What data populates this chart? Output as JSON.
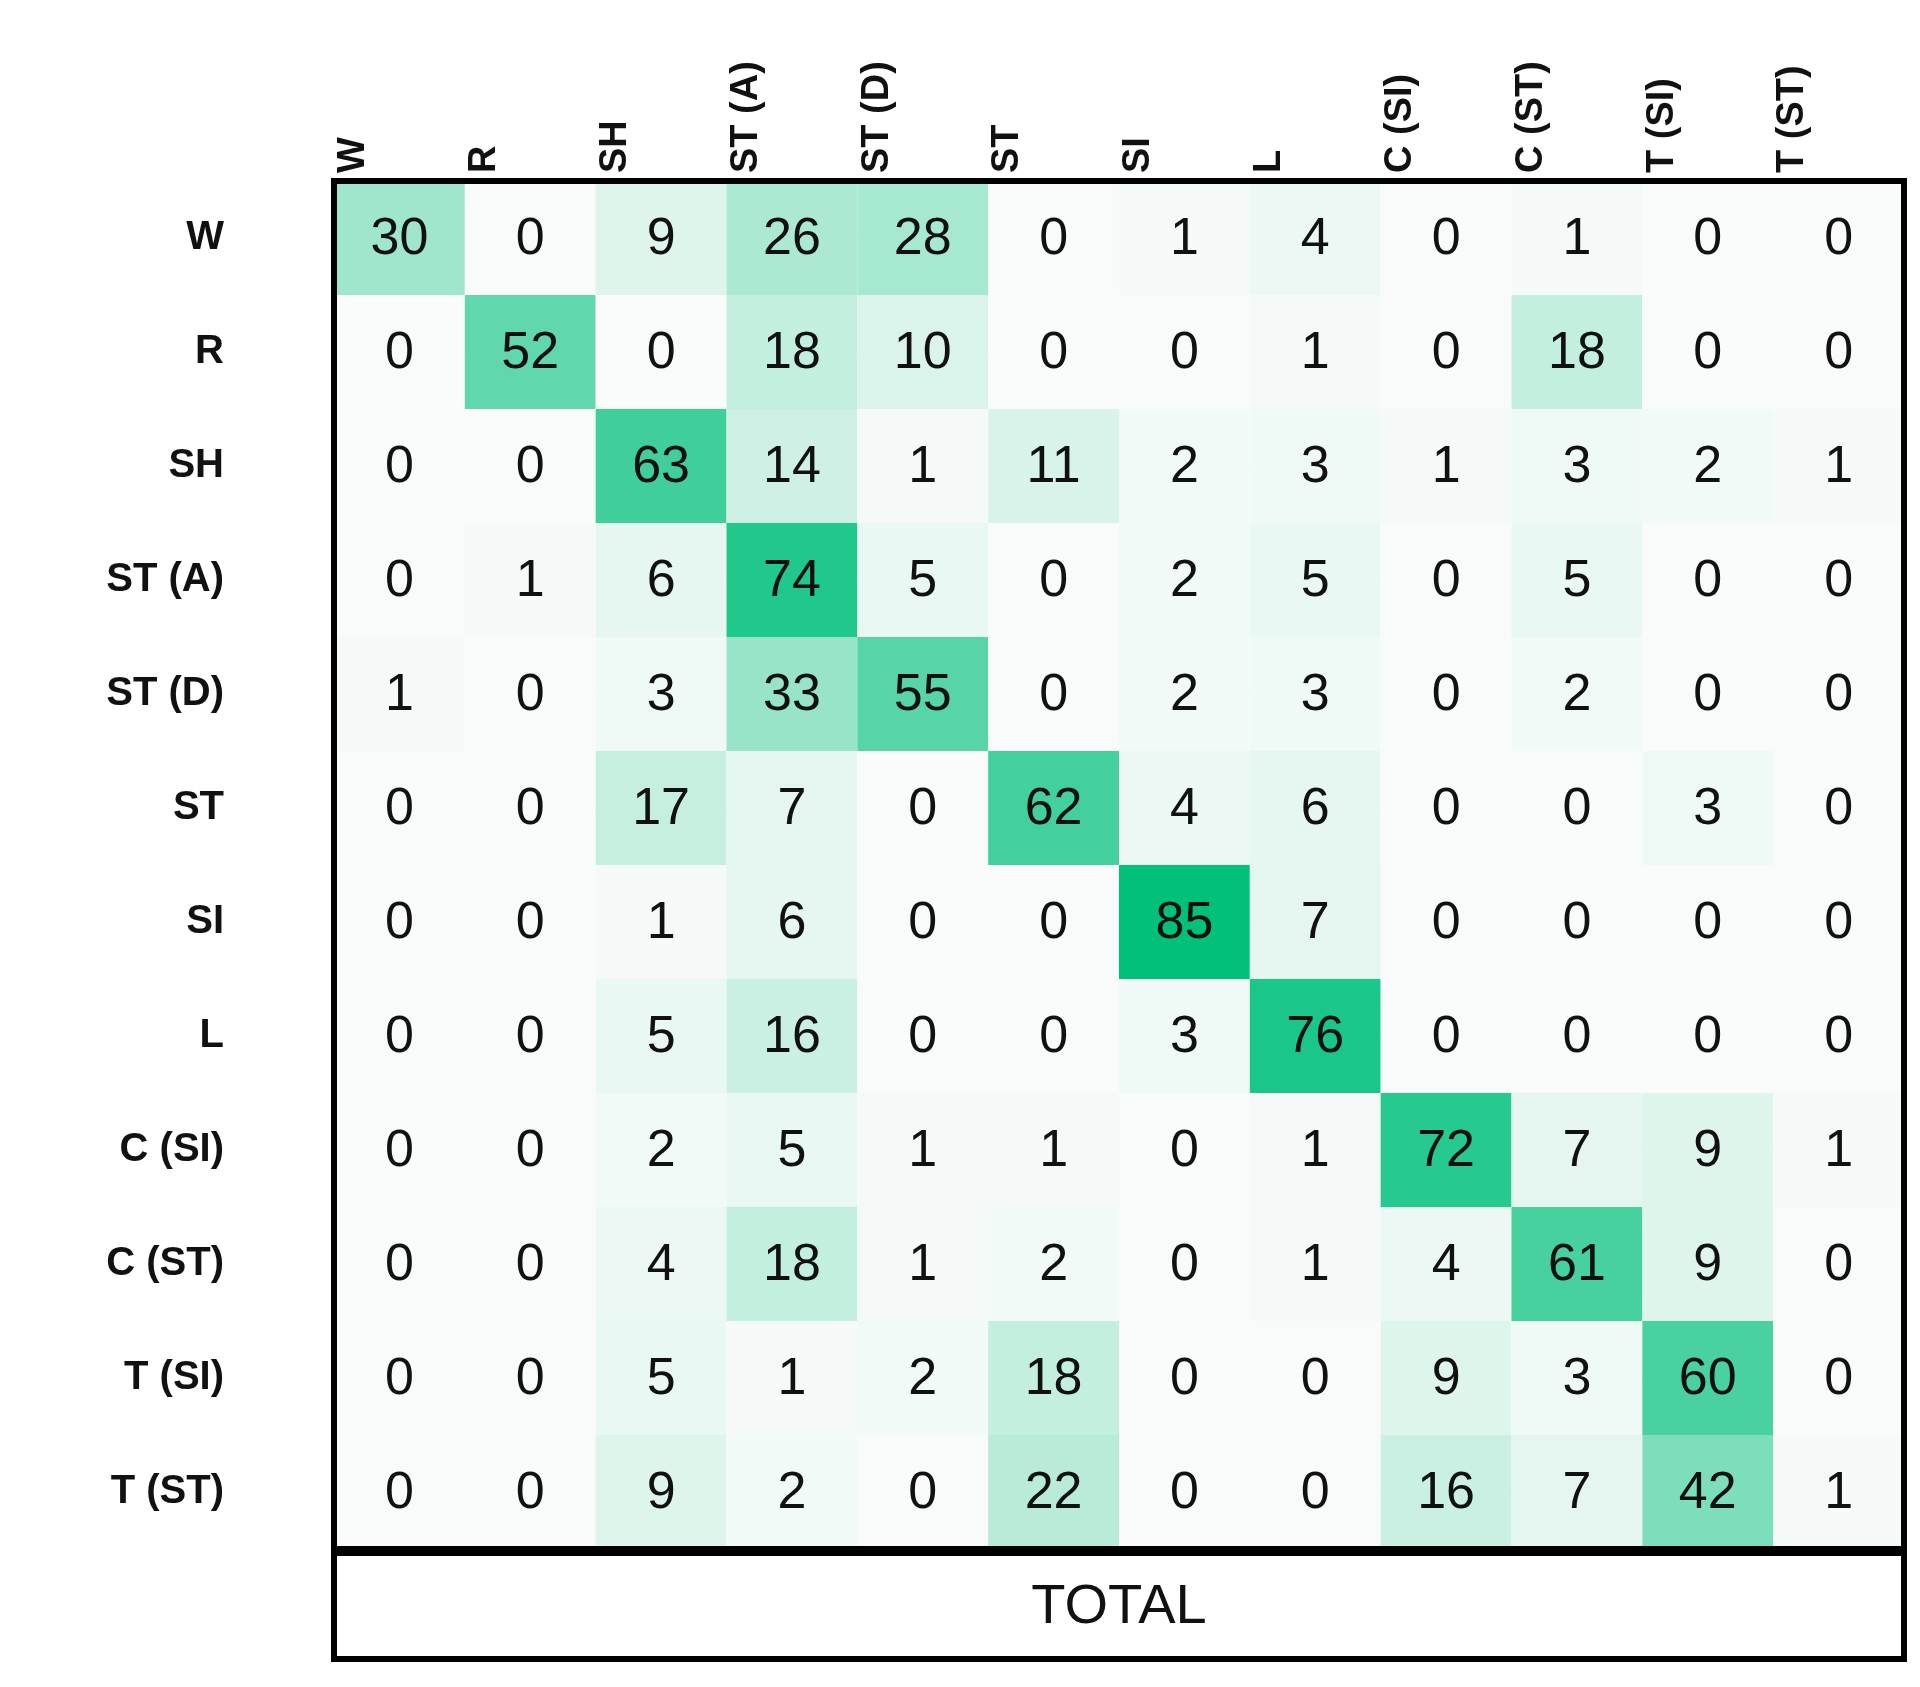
{
  "chart_data": {
    "type": "heatmap",
    "color": "#00c07a",
    "data_labels": true,
    "categories": [
      "W",
      "R",
      "SH",
      "ST (A)",
      "ST (D)",
      "ST",
      "SI",
      "L",
      "C (SI)",
      "C (ST)",
      "T (SI)",
      "T (ST)"
    ],
    "y_categories": [
      "W",
      "R",
      "SH",
      "ST (A)",
      "ST (D)",
      "ST",
      "SI",
      "L",
      "C (SI)",
      "C (ST)",
      "T (SI)",
      "T (ST)"
    ],
    "cells": [
      [
        30,
        0,
        9,
        26,
        28,
        0,
        1,
        4,
        0,
        1,
        0,
        0
      ],
      [
        0,
        52,
        0,
        18,
        10,
        0,
        0,
        1,
        0,
        18,
        0,
        0
      ],
      [
        0,
        0,
        63,
        14,
        1,
        11,
        2,
        3,
        1,
        3,
        2,
        1
      ],
      [
        0,
        1,
        6,
        74,
        5,
        0,
        2,
        5,
        0,
        5,
        0,
        0
      ],
      [
        1,
        0,
        3,
        33,
        55,
        0,
        2,
        3,
        0,
        2,
        0,
        0
      ],
      [
        0,
        0,
        17,
        7,
        0,
        62,
        4,
        6,
        0,
        0,
        3,
        0
      ],
      [
        0,
        0,
        1,
        6,
        0,
        0,
        85,
        7,
        0,
        0,
        0,
        0
      ],
      [
        0,
        0,
        5,
        16,
        0,
        0,
        3,
        76,
        0,
        0,
        0,
        0
      ],
      [
        0,
        0,
        2,
        5,
        1,
        1,
        0,
        1,
        72,
        7,
        9,
        1
      ],
      [
        0,
        0,
        4,
        18,
        1,
        2,
        0,
        1,
        4,
        61,
        9,
        0
      ],
      [
        0,
        0,
        5,
        1,
        2,
        18,
        0,
        0,
        9,
        3,
        60,
        0
      ],
      [
        0,
        0,
        9,
        2,
        0,
        22,
        0,
        0,
        16,
        7,
        42,
        1
      ]
    ],
    "annotations": [
      "TOTAL"
    ]
  }
}
